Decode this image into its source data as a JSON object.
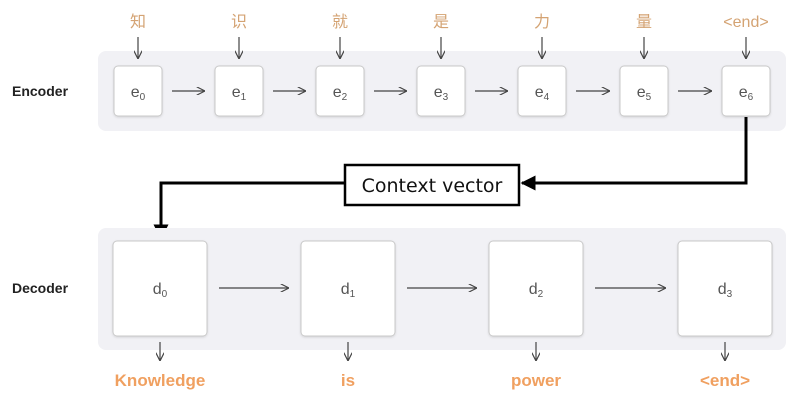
{
  "encoder": {
    "label": "Encoder",
    "input_tokens": [
      "知",
      "识",
      "就",
      "是",
      "力",
      "量",
      "<end>"
    ],
    "nodes": [
      {
        "base": "e",
        "sub": "0"
      },
      {
        "base": "e",
        "sub": "1"
      },
      {
        "base": "e",
        "sub": "2"
      },
      {
        "base": "e",
        "sub": "3"
      },
      {
        "base": "e",
        "sub": "4"
      },
      {
        "base": "e",
        "sub": "5"
      },
      {
        "base": "e",
        "sub": "6"
      }
    ]
  },
  "context": {
    "label": "Context vector"
  },
  "decoder": {
    "label": "Decoder",
    "nodes": [
      {
        "base": "d",
        "sub": "0"
      },
      {
        "base": "d",
        "sub": "1"
      },
      {
        "base": "d",
        "sub": "2"
      },
      {
        "base": "d",
        "sub": "3"
      }
    ],
    "output_tokens": [
      "Knowledge",
      "is",
      "power",
      "<end>"
    ]
  },
  "colors": {
    "panel": "#f1f1f5",
    "node_border": "#c8c8c8",
    "input_token": "#d4a373",
    "output_token": "#f0a060"
  }
}
